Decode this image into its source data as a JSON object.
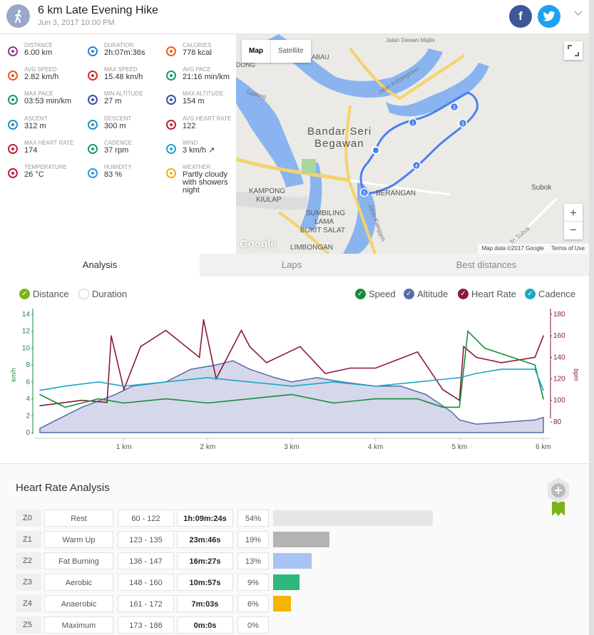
{
  "header": {
    "title": "6 km Late Evening Hike",
    "date": "Jun 3, 2017 10:00 PM",
    "facebook_label": "f",
    "twitter_label": "t"
  },
  "stats": [
    {
      "label": "Distance",
      "value": "6.00 km",
      "icon": "distance-icon",
      "color": "#8e3a8e"
    },
    {
      "label": "Duration",
      "value": "2h:07m:36s",
      "icon": "stopwatch-icon",
      "color": "#2f80d8"
    },
    {
      "label": "Calories",
      "value": "778 kcal",
      "icon": "flame-icon",
      "color": "#e8601c"
    },
    {
      "label": "Avg speed",
      "value": "2.82 km/h",
      "icon": "speedometer-icon",
      "color": "#e8601c"
    },
    {
      "label": "Max speed",
      "value": "15.48 km/h",
      "icon": "speedometer-icon",
      "color": "#d62b2b"
    },
    {
      "label": "Avg pace",
      "value": "21:16 min/km",
      "icon": "pace-icon",
      "color": "#1a9a6c"
    },
    {
      "label": "Max pace",
      "value": "03:53 min/km",
      "icon": "pace-icon",
      "color": "#1a9a6c"
    },
    {
      "label": "Min altitude",
      "value": "27 m",
      "icon": "mountain-icon",
      "color": "#3a4fa8"
    },
    {
      "label": "Max altitude",
      "value": "154 m",
      "icon": "mountain-icon",
      "color": "#3a4fa8"
    },
    {
      "label": "Ascent",
      "value": "312 m",
      "icon": "ascent-icon",
      "color": "#1a9ab8"
    },
    {
      "label": "Descent",
      "value": "300 m",
      "icon": "descent-icon",
      "color": "#1a9ab8"
    },
    {
      "label": "Avg heart rate",
      "value": "122",
      "icon": "heart-icon",
      "color": "#c0203a"
    },
    {
      "label": "Max heart rate",
      "value": "174",
      "icon": "heart-icon",
      "color": "#c0203a"
    },
    {
      "label": "Cadence",
      "value": "37 rpm",
      "icon": "cadence-icon",
      "color": "#1a9a6c"
    },
    {
      "label": "Wind",
      "value": "3 km/h ↗",
      "icon": "wind-icon",
      "color": "#2aa0d8"
    },
    {
      "label": "Temperature",
      "value": "26 °C",
      "icon": "thermometer-icon",
      "color": "#c0203a"
    },
    {
      "label": "Humidity",
      "value": "83 %",
      "icon": "humidity-icon",
      "color": "#2aa0d8"
    },
    {
      "label": "Weather",
      "value": "Partly cloudy with showers night",
      "icon": "weather-icon",
      "color": "#e8b21c"
    }
  ],
  "map": {
    "map_button": "Map",
    "satellite_button": "Satellite",
    "labels": [
      "Bandar Seri",
      "Begawan",
      "KAMPONG",
      "KIULAP",
      "SUMBILING",
      "LAMA",
      "BUKIT SALAT",
      "LIMBONGAN",
      "BERANGAN",
      "Subok",
      "Jln Subok",
      "Jalan Kebangsaan",
      "Jalan Kianggeh",
      "Jalan Dewan Majlis",
      "KABAU",
      "DONG",
      "Gadong",
      "Google"
    ],
    "route_markers": [
      "1",
      "2",
      "3",
      "4",
      "5"
    ],
    "attribution": "Map data ©2017 Google",
    "terms": "Terms of Use",
    "zoom_in": "+",
    "zoom_out": "−"
  },
  "tabs": [
    "Analysis",
    "Laps",
    "Best distances"
  ],
  "chart_legend": {
    "x_modes": [
      {
        "label": "Distance",
        "checked": true
      },
      {
        "label": "Duration",
        "checked": false
      }
    ],
    "series": [
      {
        "label": "Speed",
        "color": "#1a8a3c"
      },
      {
        "label": "Altitude",
        "color": "#5a6aa8"
      },
      {
        "label": "Heart Rate",
        "color": "#8a1a3c"
      },
      {
        "label": "Cadence",
        "color": "#1aa8c8"
      }
    ]
  },
  "chart_data": {
    "type": "line",
    "title": "",
    "xlabel": "",
    "x_ticks": [
      "1 km",
      "2 km",
      "3 km",
      "4 km",
      "5 km",
      "6 km"
    ],
    "x_range": [
      0,
      6
    ],
    "left_axis": {
      "label": "km/h",
      "ticks": [
        0,
        2,
        4,
        6,
        8,
        10,
        12,
        14
      ],
      "range": [
        0,
        14
      ]
    },
    "right_axis": {
      "label": "bpm",
      "ticks": [
        80,
        100,
        120,
        140,
        160,
        180
      ],
      "range": [
        70,
        180
      ]
    },
    "series": [
      {
        "name": "Altitude",
        "axis": "left_scaled",
        "x": [
          0,
          0.2,
          0.5,
          0.9,
          1.1,
          1.5,
          1.8,
          2.1,
          2.3,
          2.5,
          2.8,
          3.0,
          3.3,
          3.6,
          4.0,
          4.3,
          4.6,
          4.9,
          5.0,
          5.2,
          5.5,
          5.9,
          6.0
        ],
        "values": [
          0.5,
          1.5,
          3.0,
          4.5,
          5.5,
          6.0,
          7.5,
          8.0,
          8.5,
          7.5,
          6.5,
          6.0,
          6.5,
          6.0,
          5.5,
          5.5,
          4.5,
          2.5,
          1.5,
          1.0,
          1.2,
          1.5,
          1.8
        ]
      },
      {
        "name": "Heart Rate",
        "axis": "right",
        "x": [
          0,
          0.5,
          0.8,
          0.85,
          1.0,
          1.2,
          1.5,
          1.9,
          1.95,
          2.1,
          2.4,
          2.5,
          2.7,
          3.1,
          3.4,
          3.7,
          4.0,
          4.5,
          4.8,
          5.0,
          5.05,
          5.2,
          5.5,
          5.9,
          6.0
        ],
        "values": [
          95,
          100,
          98,
          160,
          110,
          150,
          165,
          140,
          175,
          120,
          165,
          150,
          135,
          150,
          125,
          130,
          130,
          145,
          110,
          100,
          150,
          140,
          135,
          140,
          160
        ]
      },
      {
        "name": "Speed",
        "axis": "left",
        "x": [
          0,
          0.3,
          0.7,
          1.0,
          1.5,
          2.0,
          2.5,
          3.0,
          3.5,
          4.0,
          4.5,
          4.8,
          5.0,
          5.1,
          5.3,
          5.6,
          5.9,
          6.0
        ],
        "values": [
          4.5,
          3.0,
          4.0,
          3.5,
          4.0,
          3.5,
          4.0,
          4.5,
          3.5,
          4.0,
          4.0,
          3.0,
          3.0,
          12.0,
          10.0,
          9.0,
          8.0,
          4.0
        ]
      },
      {
        "name": "Cadence",
        "axis": "left_scaled",
        "x": [
          0,
          0.3,
          0.7,
          1.0,
          1.5,
          2.0,
          2.5,
          3.0,
          3.5,
          4.0,
          4.5,
          5.0,
          5.2,
          5.5,
          5.9,
          6.0
        ],
        "values": [
          5.0,
          5.5,
          6.0,
          5.5,
          6.0,
          6.5,
          6.0,
          5.5,
          6.0,
          5.5,
          6.0,
          6.5,
          7.0,
          7.5,
          7.5,
          5.0
        ]
      }
    ]
  },
  "hr_analysis": {
    "title": "Heart Rate Analysis",
    "zones": [
      {
        "id": "Z0",
        "name": "Rest",
        "range": "60 - 122",
        "time": "1h:09m:24s",
        "pct": "54%",
        "fraction": 0.54,
        "color": "#e6e6e6"
      },
      {
        "id": "Z1",
        "name": "Warm Up",
        "range": "123 - 135",
        "time": "23m:46s",
        "pct": "19%",
        "fraction": 0.19,
        "color": "#b3b3b3"
      },
      {
        "id": "Z2",
        "name": "Fat Burning",
        "range": "136 - 147",
        "time": "16m:27s",
        "pct": "13%",
        "fraction": 0.13,
        "color": "#a8c4f5"
      },
      {
        "id": "Z3",
        "name": "Aerobic",
        "range": "148 - 160",
        "time": "10m:57s",
        "pct": "9%",
        "fraction": 0.09,
        "color": "#2eb87a"
      },
      {
        "id": "Z4",
        "name": "Anaerobic",
        "range": "161 - 172",
        "time": "7m:03s",
        "pct": "6%",
        "fraction": 0.06,
        "color": "#f5b400"
      },
      {
        "id": "Z5",
        "name": "Maximum",
        "range": "173 - 186",
        "time": "0m:0s",
        "pct": "0%",
        "fraction": 0.0,
        "color": "#d62b2b"
      }
    ]
  }
}
